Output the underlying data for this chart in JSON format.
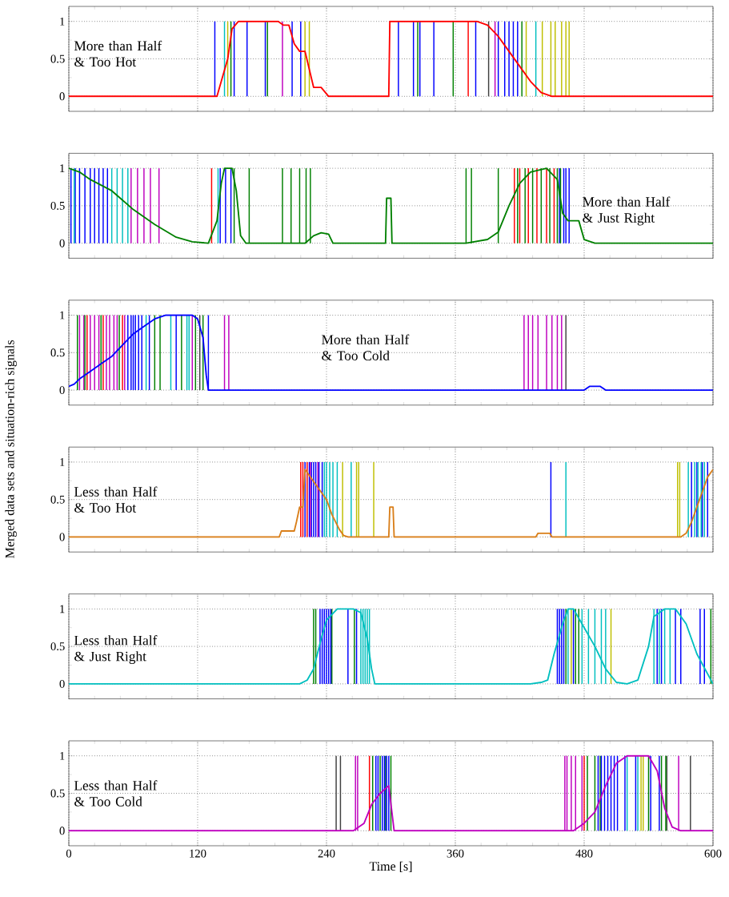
{
  "chart_data": [
    {
      "type": "line",
      "xlim": [
        0,
        600
      ],
      "ylim": [
        -0.2,
        1.2
      ],
      "xticks": [
        0,
        120,
        240,
        360,
        480,
        600
      ],
      "yticks": [
        0,
        0.5,
        1
      ],
      "grid": true,
      "tick_labels": "y",
      "annotations": [
        "More than Half & Too Hot"
      ],
      "series": [
        {
          "type": "bar",
          "color": "#0000ff",
          "x": [
            136,
            154,
            166,
            183,
            208,
            216,
            307,
            321,
            327,
            340,
            379,
            400,
            406,
            410,
            414,
            418
          ],
          "values": [
            1,
            1,
            1,
            1,
            1,
            1,
            1,
            1,
            1,
            1,
            1,
            1,
            1,
            1,
            1,
            1
          ]
        },
        {
          "type": "bar",
          "color": "#008000",
          "x": [
            151,
            185,
            325,
            358,
            422
          ],
          "values": [
            1,
            1,
            1,
            1,
            1
          ]
        },
        {
          "type": "bar",
          "color": "#00bfbf",
          "x": [
            145,
            435
          ],
          "values": [
            1,
            1
          ]
        },
        {
          "type": "bar",
          "color": "#bfbf00",
          "x": [
            148,
            220,
            224,
            426,
            441,
            449,
            453,
            459,
            463,
            466
          ],
          "values": [
            1,
            1,
            1,
            1,
            1,
            1,
            1,
            1,
            1,
            1
          ]
        },
        {
          "type": "bar",
          "color": "#bf00bf",
          "x": [
            199,
            397
          ],
          "values": [
            1,
            1
          ]
        },
        {
          "type": "bar",
          "color": "#404040",
          "x": [
            391
          ],
          "values": [
            1
          ]
        },
        {
          "type": "bar",
          "color": "#ff0000",
          "x": [
            372
          ],
          "values": [
            1
          ]
        },
        {
          "color": "#ff0000",
          "x": [
            0,
            138,
            142,
            148,
            152,
            158,
            195,
            200,
            205,
            210,
            215,
            220,
            225,
            228,
            235,
            242,
            298,
            299,
            380,
            390,
            400,
            410,
            420,
            430,
            440,
            450,
            600
          ],
          "values": [
            0,
            0,
            0.2,
            0.5,
            0.9,
            1,
            1,
            0.95,
            0.95,
            0.7,
            0.6,
            0.6,
            0.3,
            0.12,
            0.12,
            0,
            0,
            1,
            1,
            0.95,
            0.8,
            0.6,
            0.4,
            0.2,
            0.05,
            0,
            0
          ]
        }
      ]
    },
    {
      "type": "line",
      "xlim": [
        0,
        600
      ],
      "ylim": [
        -0.2,
        1.2
      ],
      "xticks": [
        0,
        120,
        240,
        360,
        480,
        600
      ],
      "yticks": [
        0,
        0.5,
        1
      ],
      "grid": true,
      "tick_labels": "y",
      "annotations": [
        "More than Half & Just Right"
      ],
      "series": [
        {
          "type": "bar",
          "color": "#0000ff",
          "x": [
            2,
            6,
            10,
            15,
            20,
            24,
            28,
            32,
            36,
            141,
            146,
            151,
            457,
            461,
            463,
            466
          ],
          "values": [
            1,
            1,
            1,
            1,
            1,
            1,
            1,
            1,
            1,
            1,
            1,
            1,
            1,
            1,
            1,
            1
          ]
        },
        {
          "type": "bar",
          "color": "#00bfbf",
          "x": [
            5,
            40,
            45,
            50,
            55,
            139
          ],
          "values": [
            1,
            1,
            1,
            1,
            1,
            1
          ]
        },
        {
          "type": "bar",
          "color": "#bf00bf",
          "x": [
            58,
            64,
            70,
            76,
            84
          ],
          "values": [
            1,
            1,
            1,
            1,
            1
          ]
        },
        {
          "type": "bar",
          "color": "#ff0000",
          "x": [
            133,
            415,
            420,
            428,
            436,
            445,
            452
          ],
          "values": [
            1,
            1,
            1,
            1,
            1,
            1,
            1
          ]
        },
        {
          "type": "bar",
          "color": "#008000",
          "x": [
            154,
            168,
            199,
            207,
            215,
            221,
            225,
            370,
            375,
            400,
            418,
            425,
            432,
            440,
            448,
            455,
            458
          ],
          "values": [
            1,
            1,
            1,
            1,
            1,
            1,
            1,
            1,
            1,
            1,
            1,
            1,
            1,
            1,
            1,
            1,
            1
          ]
        },
        {
          "color": "#008000",
          "x": [
            0,
            10,
            20,
            40,
            60,
            80,
            100,
            115,
            130,
            138,
            142,
            145,
            152,
            156,
            160,
            165,
            220,
            228,
            235,
            242,
            246,
            295,
            296,
            300,
            301,
            370,
            390,
            400,
            410,
            420,
            430,
            445,
            455,
            460,
            465,
            475,
            480,
            490,
            600
          ],
          "values": [
            1,
            0.95,
            0.85,
            0.7,
            0.45,
            0.25,
            0.08,
            0.02,
            0,
            0.3,
            0.8,
            1,
            1,
            0.7,
            0.1,
            0,
            0,
            0.1,
            0.14,
            0.12,
            0,
            0,
            0.6,
            0.6,
            0,
            0,
            0.05,
            0.15,
            0.5,
            0.8,
            0.95,
            1,
            0.85,
            0.4,
            0.3,
            0.3,
            0.05,
            0,
            0
          ]
        }
      ]
    },
    {
      "type": "line",
      "xlim": [
        0,
        600
      ],
      "ylim": [
        -0.2,
        1.2
      ],
      "xticks": [
        0,
        120,
        240,
        360,
        480,
        600
      ],
      "yticks": [
        0,
        0.5,
        1
      ],
      "grid": true,
      "tick_labels": "y",
      "annotations": [
        "More than Half & Too Cold"
      ],
      "series": [
        {
          "type": "bar",
          "color": "#bf00bf",
          "x": [
            10,
            14,
            20,
            24,
            28,
            35,
            38,
            42,
            45,
            52,
            115,
            145,
            149,
            424,
            428,
            432,
            437,
            445,
            450,
            455,
            459
          ],
          "values": [
            1,
            1,
            1,
            1,
            1,
            1,
            1,
            1,
            1,
            1,
            1,
            1,
            1,
            1,
            1,
            1,
            1,
            1,
            1,
            1,
            1
          ]
        },
        {
          "type": "bar",
          "color": "#0000ff",
          "x": [
            55,
            58,
            60,
            62,
            65,
            68,
            75,
            100,
            130
          ],
          "values": [
            1,
            1,
            1,
            1,
            1,
            1,
            1,
            1,
            1
          ]
        },
        {
          "type": "bar",
          "color": "#008000",
          "x": [
            8,
            15,
            30,
            47,
            80,
            85,
            105,
            118,
            125
          ],
          "values": [
            1,
            1,
            1,
            1,
            1,
            1,
            1,
            1,
            1
          ]
        },
        {
          "type": "bar",
          "color": "#00bfbf",
          "x": [
            72,
            95,
            110,
            112
          ],
          "values": [
            1,
            1,
            1,
            1
          ]
        },
        {
          "type": "bar",
          "color": "#ff0000",
          "x": [
            17,
            32,
            50
          ],
          "values": [
            1,
            1,
            1
          ]
        },
        {
          "type": "bar",
          "color": "#404040",
          "x": [
            122,
            463
          ],
          "values": [
            1,
            1
          ]
        },
        {
          "color": "#0000ff",
          "x": [
            0,
            5,
            10,
            20,
            30,
            40,
            50,
            60,
            70,
            80,
            90,
            115,
            120,
            125,
            128,
            130,
            480,
            485,
            495,
            500,
            600
          ],
          "values": [
            0.05,
            0.08,
            0.15,
            0.25,
            0.35,
            0.45,
            0.6,
            0.75,
            0.85,
            0.95,
            1,
            1,
            0.95,
            0.7,
            0.2,
            0,
            0,
            0.05,
            0.05,
            0,
            0
          ]
        }
      ]
    },
    {
      "type": "line",
      "xlim": [
        0,
        600
      ],
      "ylim": [
        -0.2,
        1.2
      ],
      "xticks": [
        0,
        120,
        240,
        360,
        480,
        600
      ],
      "yticks": [
        0,
        0.5,
        1
      ],
      "grid": true,
      "tick_labels": "y",
      "ylabel": "Merged data sets and situation-rich signals",
      "annotations": [
        "Less than Half & Too Hot"
      ],
      "series": [
        {
          "type": "bar",
          "color": "#ff0000",
          "x": [
            216,
            218,
            222
          ],
          "values": [
            1,
            1,
            1
          ]
        },
        {
          "type": "bar",
          "color": "#0000ff",
          "x": [
            220,
            224,
            226,
            228,
            230,
            233,
            236,
            449,
            580,
            585,
            590,
            595
          ],
          "values": [
            1,
            1,
            1,
            1,
            1,
            1,
            1,
            1,
            1,
            1,
            1,
            1
          ]
        },
        {
          "type": "bar",
          "color": "#bf00bf",
          "x": [
            225,
            232
          ],
          "values": [
            1,
            1
          ]
        },
        {
          "type": "bar",
          "color": "#00bfbf",
          "x": [
            238,
            240,
            243,
            246,
            250,
            263,
            463,
            577,
            583,
            586,
            589,
            592
          ],
          "values": [
            1,
            1,
            1,
            1,
            1,
            1,
            1,
            1,
            1,
            1,
            1,
            1
          ]
        },
        {
          "type": "bar",
          "color": "#bfbf00",
          "x": [
            255,
            268,
            270,
            284,
            567,
            569
          ],
          "values": [
            1,
            1,
            1,
            1,
            1,
            1
          ]
        },
        {
          "color": "#d97f1a",
          "x": [
            0,
            196,
            198,
            210,
            212,
            215,
            218,
            220,
            240,
            245,
            252,
            256,
            260,
            298,
            299,
            302,
            303,
            435,
            437,
            448,
            450,
            570,
            575,
            580,
            585,
            590,
            595,
            600
          ],
          "values": [
            0,
            0,
            0.08,
            0.08,
            0.2,
            0.4,
            0.4,
            0.9,
            0.5,
            0.3,
            0.1,
            0.02,
            0,
            0,
            0.4,
            0.4,
            0,
            0,
            0.05,
            0.05,
            0,
            0,
            0.05,
            0.2,
            0.4,
            0.6,
            0.8,
            0.9
          ]
        }
      ]
    },
    {
      "type": "line",
      "xlim": [
        0,
        600
      ],
      "ylim": [
        -0.2,
        1.2
      ],
      "xticks": [
        0,
        120,
        240,
        360,
        480,
        600
      ],
      "yticks": [
        0,
        0.5,
        1
      ],
      "grid": true,
      "tick_labels": "y",
      "annotations": [
        "Less than Half & Just Right"
      ],
      "series": [
        {
          "type": "bar",
          "color": "#008000",
          "x": [
            228,
            230,
            245,
            266,
            463,
            472,
            475,
            598
          ],
          "values": [
            1,
            1,
            1,
            1,
            1,
            1,
            1,
            1
          ]
        },
        {
          "type": "bar",
          "color": "#0000ff",
          "x": [
            234,
            236,
            238,
            240,
            242,
            244,
            260,
            268,
            455,
            457,
            459,
            461,
            470,
            548,
            552,
            565,
            570,
            588,
            592
          ],
          "values": [
            1,
            1,
            1,
            1,
            1,
            1,
            1,
            1,
            1,
            1,
            1,
            1,
            1,
            1,
            1,
            1,
            1,
            1,
            1
          ]
        },
        {
          "type": "bar",
          "color": "#00bfbf",
          "x": [
            272,
            274,
            276,
            278,
            280,
            465,
            478,
            484,
            490,
            496,
            500,
            545,
            550,
            555,
            560
          ],
          "values": [
            1,
            1,
            1,
            1,
            1,
            1,
            1,
            1,
            1,
            1,
            1,
            1,
            1,
            1,
            1
          ]
        },
        {
          "type": "bar",
          "color": "#bfbf00",
          "x": [
            468,
            505
          ],
          "values": [
            1,
            1
          ]
        },
        {
          "color": "#00bfbf",
          "x": [
            0,
            215,
            222,
            228,
            235,
            240,
            250,
            265,
            272,
            278,
            282,
            285,
            430,
            440,
            446,
            452,
            460,
            465,
            470,
            478,
            490,
            500,
            510,
            520,
            530,
            540,
            545,
            555,
            565,
            575,
            585,
            600
          ],
          "values": [
            0,
            0,
            0.05,
            0.2,
            0.6,
            0.85,
            1,
            1,
            0.95,
            0.6,
            0.2,
            0,
            0,
            0.02,
            0.05,
            0.4,
            0.8,
            1,
            1,
            0.8,
            0.5,
            0.2,
            0.02,
            0,
            0.05,
            0.5,
            0.9,
            1,
            1,
            0.8,
            0.4,
            0
          ]
        }
      ]
    },
    {
      "type": "line",
      "xlim": [
        0,
        600
      ],
      "ylim": [
        -0.2,
        1.2
      ],
      "xticks": [
        0,
        120,
        240,
        360,
        480,
        600
      ],
      "yticks": [
        0,
        0.5,
        1
      ],
      "grid": true,
      "xlabel": "Time [s]",
      "annotations": [
        "Less than Half & Too Cold"
      ],
      "series": [
        {
          "type": "bar",
          "color": "#404040",
          "x": [
            249,
            253,
            557,
            579
          ],
          "values": [
            1,
            1,
            1,
            1
          ]
        },
        {
          "type": "bar",
          "color": "#bf00bf",
          "x": [
            267,
            269,
            462,
            464,
            468,
            472,
            478,
            568
          ],
          "values": [
            1,
            1,
            1,
            1,
            1,
            1,
            1,
            1
          ]
        },
        {
          "type": "bar",
          "color": "#ff0000",
          "x": [
            280,
            480
          ],
          "values": [
            1,
            1
          ]
        },
        {
          "type": "bar",
          "color": "#008000",
          "x": [
            283,
            290,
            295,
            300,
            483,
            490,
            495,
            540,
            552,
            556
          ],
          "values": [
            1,
            1,
            1,
            1,
            1,
            1,
            1,
            1,
            1,
            1
          ]
        },
        {
          "type": "bar",
          "color": "#0000ff",
          "x": [
            286,
            288,
            292,
            294,
            296,
            298,
            493,
            496,
            499,
            502,
            505,
            508,
            511,
            518,
            528,
            542,
            550
          ],
          "values": [
            1,
            1,
            1,
            1,
            1,
            1,
            1,
            1,
            1,
            1,
            1,
            1,
            1,
            1,
            1,
            1,
            1
          ]
        },
        {
          "type": "bar",
          "color": "#00bfbf",
          "x": [
            520,
            530
          ],
          "values": [
            1,
            1
          ]
        },
        {
          "type": "bar",
          "color": "#bfbf00",
          "x": [
            533,
            535
          ],
          "values": [
            1,
            1
          ]
        },
        {
          "color": "#bf00bf",
          "x": [
            0,
            265,
            275,
            282,
            290,
            298,
            303,
            470,
            480,
            490,
            500,
            510,
            520,
            540,
            548,
            555,
            562,
            570,
            600
          ],
          "values": [
            0,
            0,
            0.1,
            0.35,
            0.5,
            0.6,
            0,
            0,
            0.1,
            0.25,
            0.6,
            0.9,
            1,
            1,
            0.8,
            0.3,
            0.05,
            0,
            0
          ]
        }
      ]
    }
  ]
}
